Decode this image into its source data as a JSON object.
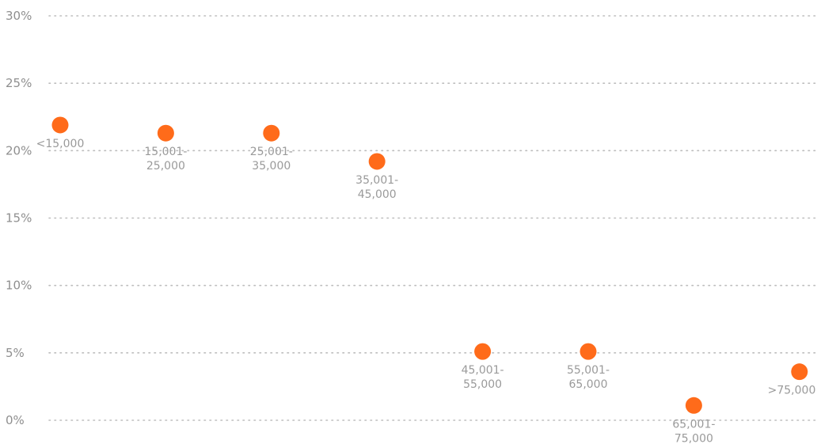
{
  "chart_data": {
    "type": "scatter",
    "categories": [
      "<15,000",
      "15,001-25,000",
      "25,001-35,000",
      "35,001-45,000",
      "45,001-55,000",
      "55,001-65,000",
      "65,001-75,000",
      ">75,000"
    ],
    "label_lines": [
      [
        "<15,000"
      ],
      [
        "15,001-",
        "25,000"
      ],
      [
        "25,001-",
        "35,000"
      ],
      [
        "35,001-",
        "45,000"
      ],
      [
        "45,001-",
        "55,000"
      ],
      [
        "55,001-",
        "65,000"
      ],
      [
        "65,001-",
        "75,000"
      ],
      [
        ">75,000"
      ]
    ],
    "values": [
      21.9,
      21.3,
      21.3,
      19.2,
      5.1,
      5.1,
      1.1,
      3.6
    ],
    "y_ticks": [
      0,
      5,
      10,
      15,
      20,
      25,
      30
    ],
    "y_tick_labels": [
      "0%",
      "5%",
      "10%",
      "15%",
      "20%",
      "25%",
      "30%"
    ],
    "ylim": [
      0,
      30
    ],
    "grid": true,
    "marker_color": "#ff6b1a",
    "grid_color": "#bdbdbd",
    "label_color": "#9a9a9a"
  }
}
